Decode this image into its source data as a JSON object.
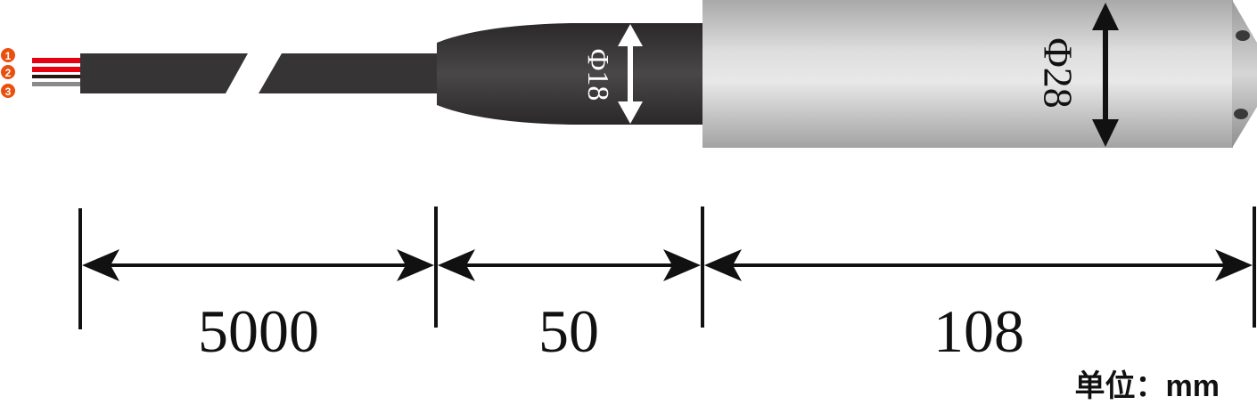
{
  "wires": [
    {
      "number": "1",
      "color": "#e9500f"
    },
    {
      "number": "2",
      "color": "#e9500f"
    },
    {
      "number": "3",
      "color": "#e9500f"
    }
  ],
  "wire_colors": {
    "red": "#e60012",
    "black": "#231815",
    "grey": "#8a8a8a"
  },
  "cable_color": "#363435",
  "diameters": {
    "small": "Φ18",
    "large": "Φ28"
  },
  "dimensions": {
    "cable": "5000",
    "neck": "50",
    "body": "108"
  },
  "unit_label": "单位：mm"
}
